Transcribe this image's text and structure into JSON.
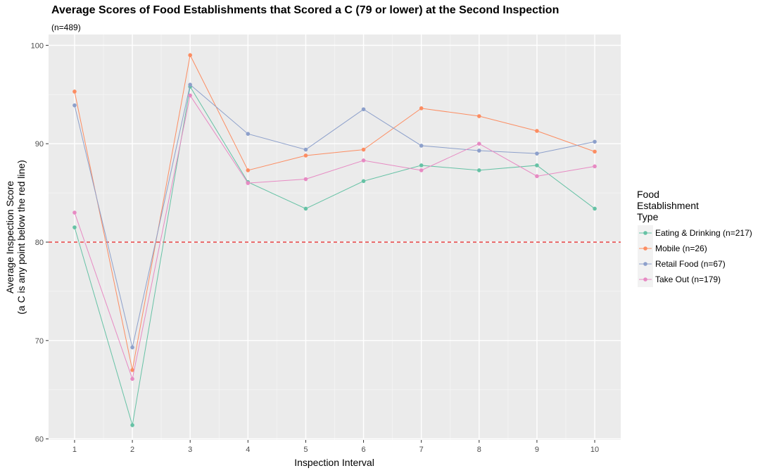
{
  "chart_data": {
    "type": "line",
    "title": "Average Scores of Food Establishments that Scored a C (79 or lower) at the Second Inspection",
    "subtitle": "(n=489)",
    "xlabel": "Inspection Interval",
    "ylabel": "Average Inspection Score",
    "ylabel_sub": "(a C is any point below the red line)",
    "x": [
      1,
      2,
      3,
      4,
      5,
      6,
      7,
      8,
      9,
      10
    ],
    "x_ticks": [
      "1",
      "2",
      "3",
      "4",
      "5",
      "6",
      "7",
      "8",
      "9",
      "10"
    ],
    "xlim": [
      0.55,
      10.45
    ],
    "ylim": [
      59.9,
      101.1
    ],
    "y_ticks": [
      60,
      70,
      80,
      90,
      100
    ],
    "grid": true,
    "reference_line": {
      "y": 80,
      "color": "#e31a1c",
      "style": "dashed"
    },
    "legend": {
      "title_lines": [
        "Food",
        "Establishment",
        "Type"
      ],
      "position": "right"
    },
    "series": [
      {
        "name": "Eating & Drinking (n=217)",
        "color": "#66c2a5",
        "values": [
          81.5,
          61.4,
          95.8,
          86.1,
          83.4,
          86.2,
          87.8,
          87.3,
          87.8,
          83.4
        ]
      },
      {
        "name": "Mobile (n=26)",
        "color": "#fc8d62",
        "values": [
          95.3,
          67.0,
          99.0,
          87.3,
          88.8,
          89.4,
          93.6,
          92.8,
          91.3,
          89.2
        ]
      },
      {
        "name": "Retail Food (n=67)",
        "color": "#8da0cb",
        "values": [
          93.9,
          69.3,
          96.0,
          91.0,
          89.4,
          93.5,
          89.8,
          89.3,
          89.0,
          90.2
        ]
      },
      {
        "name": "Take Out (n=179)",
        "color": "#e78ac3",
        "values": [
          83.0,
          66.1,
          94.9,
          86.0,
          86.4,
          88.3,
          87.3,
          90.0,
          86.7,
          87.7
        ]
      }
    ]
  }
}
